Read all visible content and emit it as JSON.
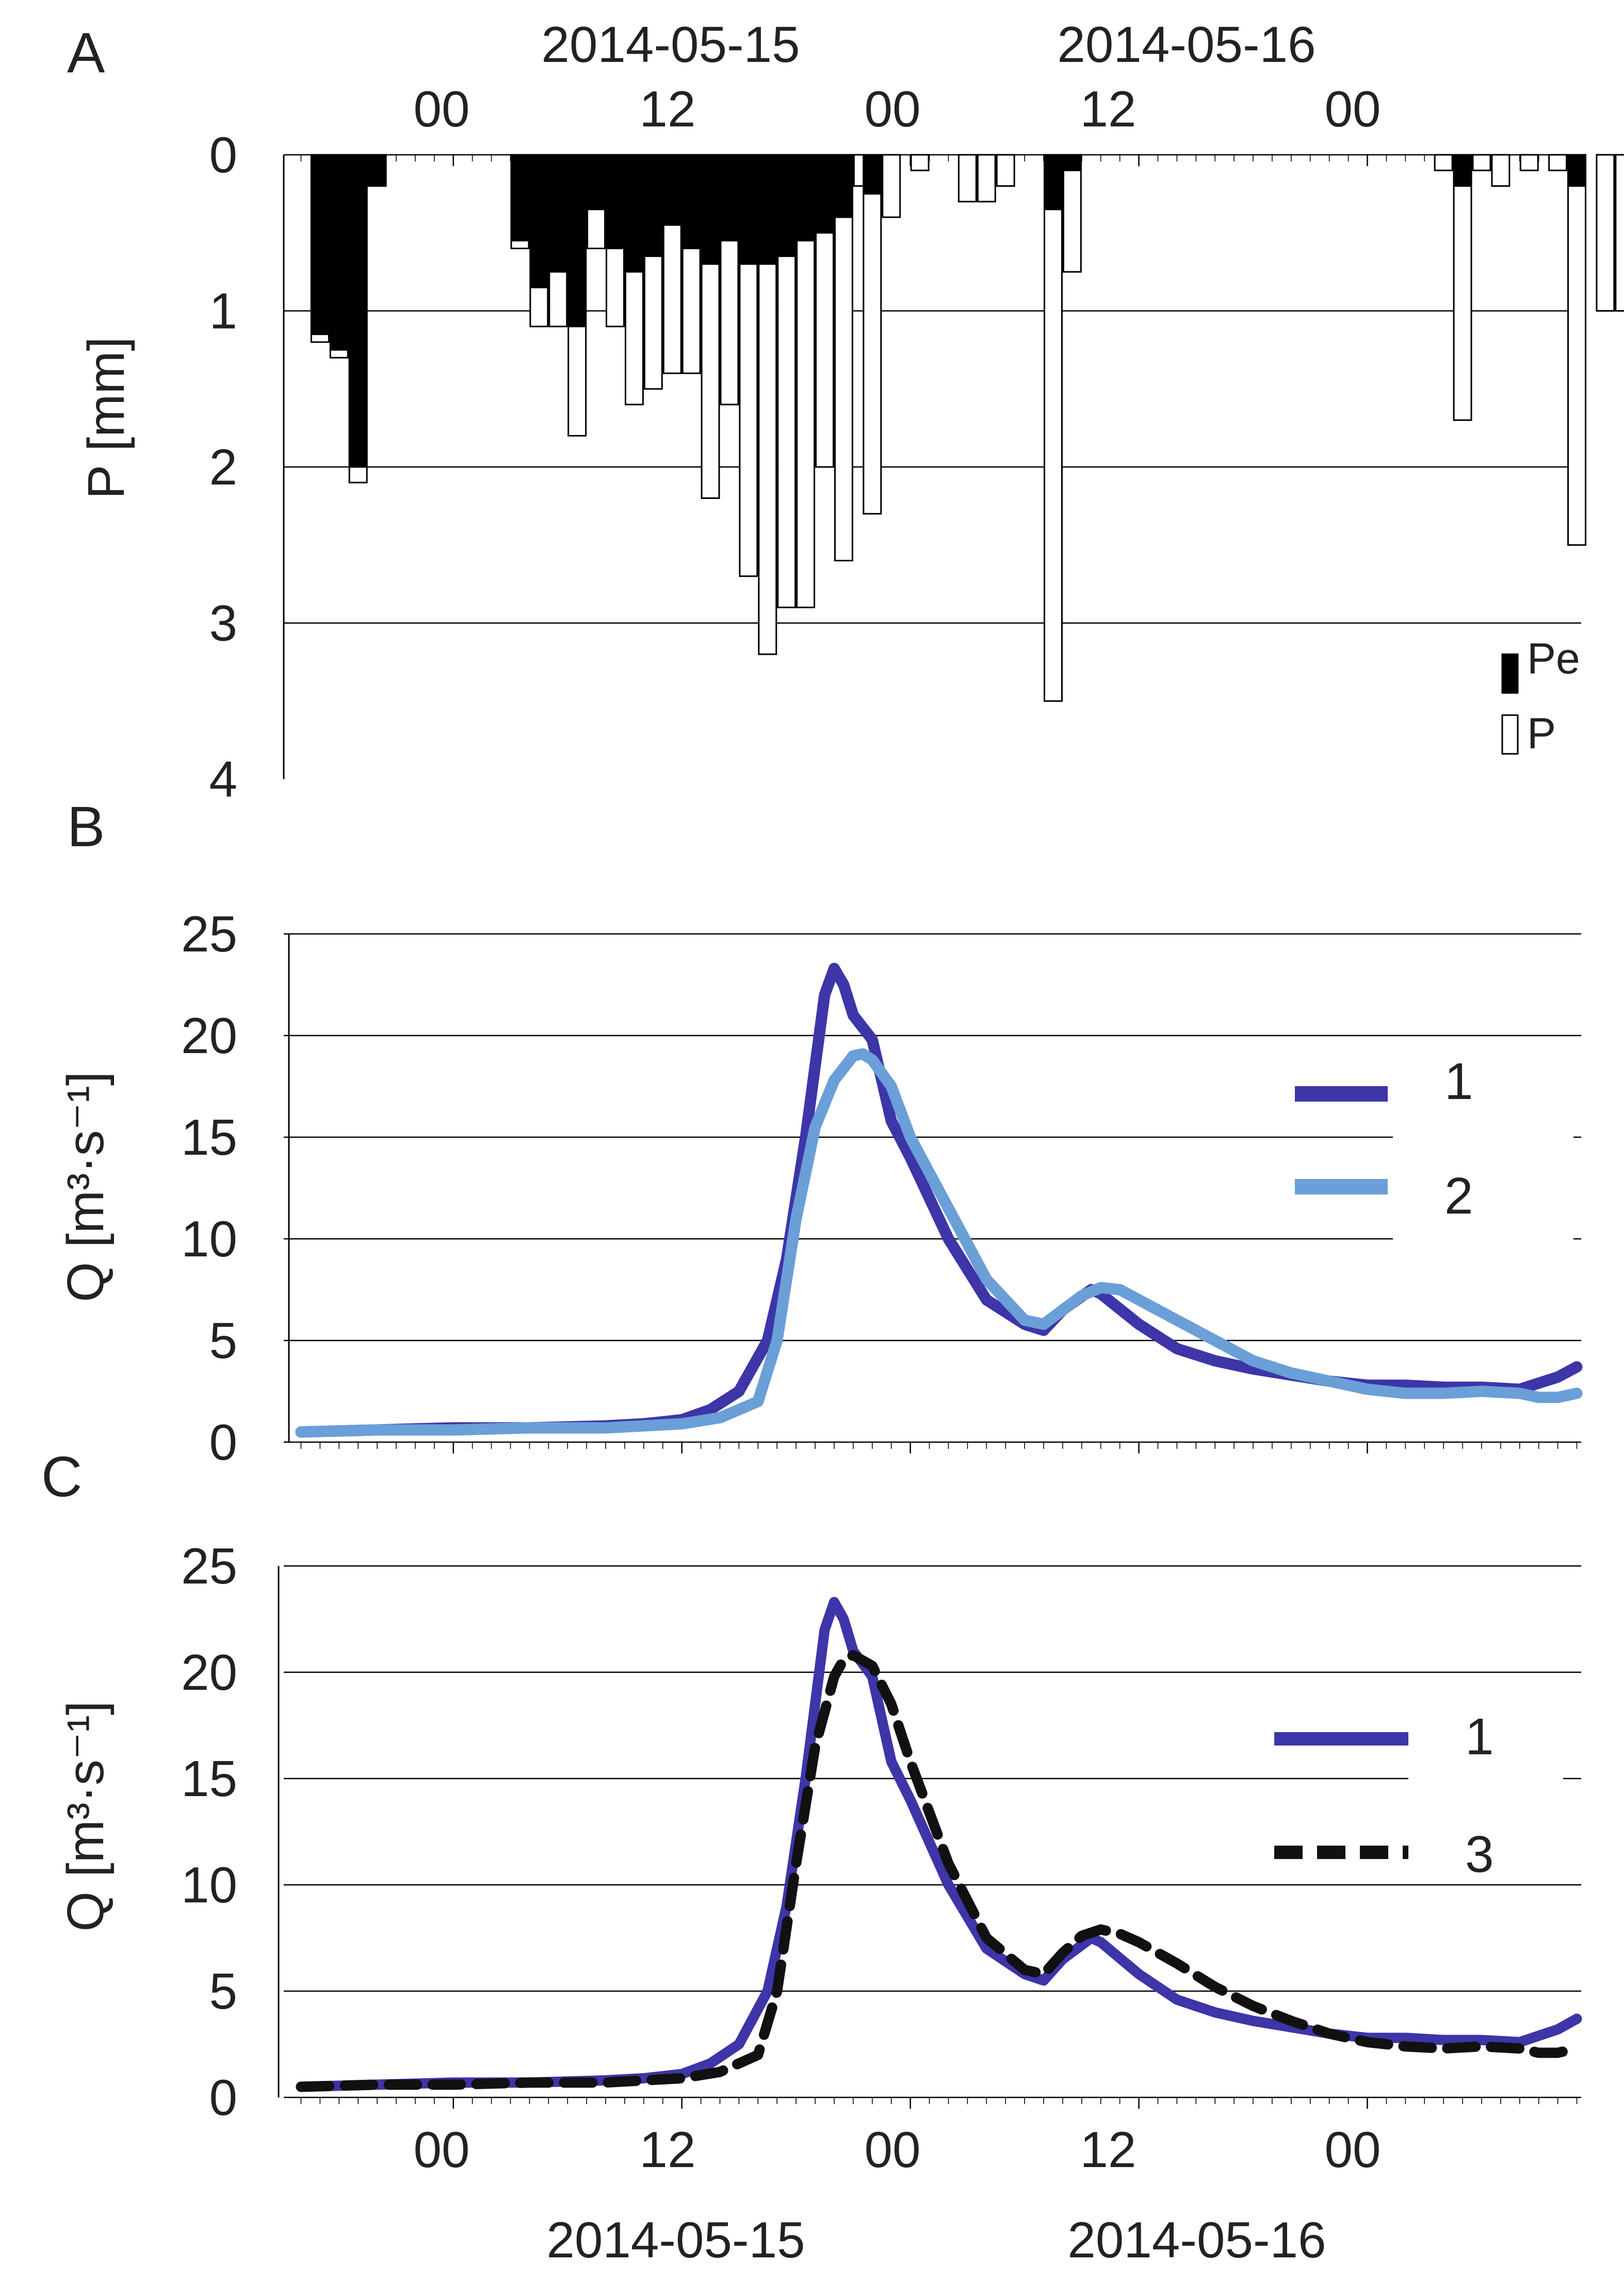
{
  "figure": {
    "panel_labels": [
      "A",
      "B",
      "C"
    ],
    "top_dates": [
      "2014-05-15",
      "2014-05-16"
    ],
    "bottom_dates": [
      "2014-05-15",
      "2014-05-16"
    ],
    "hour_labels": [
      "00",
      "12",
      "00",
      "12",
      "00"
    ],
    "colors": {
      "series_1": "#3d35a8",
      "series_2": "#6a9fd8",
      "series_3": "#111111",
      "pe_fill": "#000000",
      "p_fill": "#ffffff",
      "gridline": "#000000"
    }
  },
  "chart_data": [
    {
      "panel": "A",
      "type": "bar",
      "title": "",
      "xlabel": "",
      "ylabel": "P [mm]",
      "ylim": [
        0,
        4
      ],
      "y_inverted": true,
      "yticks": [
        "0",
        "1",
        "2",
        "3",
        "4"
      ],
      "x_unit": "hours from 2014-05-15 00:00",
      "x_range": [
        -8.5,
        59.5
      ],
      "legend": [
        "Pe",
        "P"
      ],
      "legend_position": "bottom-right",
      "bars": [
        {
          "hour": -7.0,
          "P": 1.2,
          "Pe": 1.15
        },
        {
          "hour": -6.0,
          "P": 1.3,
          "Pe": 1.25
        },
        {
          "hour": -5.0,
          "P": 2.1,
          "Pe": 2.0
        },
        {
          "hour": -4.0,
          "P": 0.2,
          "Pe": 0.2
        },
        {
          "hour": 3.5,
          "P": 0.6,
          "Pe": 0.55
        },
        {
          "hour": 4.5,
          "P": 1.1,
          "Pe": 0.85
        },
        {
          "hour": 5.5,
          "P": 1.1,
          "Pe": 0.75
        },
        {
          "hour": 6.5,
          "P": 1.8,
          "Pe": 1.1
        },
        {
          "hour": 7.5,
          "P": 0.6,
          "Pe": 0.35
        },
        {
          "hour": 8.5,
          "P": 1.1,
          "Pe": 0.6
        },
        {
          "hour": 9.5,
          "P": 1.6,
          "Pe": 0.75
        },
        {
          "hour": 10.5,
          "P": 1.5,
          "Pe": 0.65
        },
        {
          "hour": 11.5,
          "P": 1.4,
          "Pe": 0.45
        },
        {
          "hour": 12.5,
          "P": 1.4,
          "Pe": 0.6
        },
        {
          "hour": 13.5,
          "P": 2.2,
          "Pe": 0.7
        },
        {
          "hour": 14.5,
          "P": 1.6,
          "Pe": 0.55
        },
        {
          "hour": 15.5,
          "P": 2.7,
          "Pe": 0.7
        },
        {
          "hour": 16.5,
          "P": 3.2,
          "Pe": 0.7
        },
        {
          "hour": 17.5,
          "P": 2.9,
          "Pe": 0.65
        },
        {
          "hour": 18.5,
          "P": 2.9,
          "Pe": 0.55
        },
        {
          "hour": 19.5,
          "P": 2.0,
          "Pe": 0.5
        },
        {
          "hour": 20.5,
          "P": 2.6,
          "Pe": 0.4
        },
        {
          "hour": 21.5,
          "P": 0.2,
          "Pe": 0.0
        },
        {
          "hour": 22.0,
          "P": 2.3,
          "Pe": 0.25
        },
        {
          "hour": 23.0,
          "P": 0.4,
          "Pe": 0.0
        },
        {
          "hour": 24.5,
          "P": 0.1,
          "Pe": 0.0
        },
        {
          "hour": 27.0,
          "P": 0.3,
          "Pe": 0.0
        },
        {
          "hour": 28.0,
          "P": 0.3,
          "Pe": 0.0
        },
        {
          "hour": 29.0,
          "P": 0.2,
          "Pe": 0.0
        },
        {
          "hour": 31.5,
          "P": 3.5,
          "Pe": 0.35
        },
        {
          "hour": 32.5,
          "P": 0.75,
          "Pe": 0.1
        },
        {
          "hour": 52.0,
          "P": 0.1,
          "Pe": 0.0
        },
        {
          "hour": 53.0,
          "P": 1.7,
          "Pe": 0.2
        },
        {
          "hour": 54.0,
          "P": 0.1,
          "Pe": 0.0
        },
        {
          "hour": 55.0,
          "P": 0.2,
          "Pe": 0.0
        },
        {
          "hour": 56.5,
          "P": 0.1,
          "Pe": 0.0
        },
        {
          "hour": 58.0,
          "P": 0.1,
          "Pe": 0.0
        },
        {
          "hour": 59.0,
          "P": 2.5,
          "Pe": 0.2
        },
        {
          "hour": 60.5,
          "P": 1.0,
          "Pe": 0.0
        },
        {
          "hour": 61.5,
          "P": 1.0,
          "Pe": 0.0
        }
      ]
    },
    {
      "panel": "B",
      "type": "line",
      "title": "",
      "xlabel": "",
      "ylabel": "Q [m³·s⁻¹]",
      "ylim": [
        0,
        25
      ],
      "yticks": [
        "0",
        "5",
        "10",
        "15",
        "20",
        "25"
      ],
      "x_unit": "hours from 2014-05-15 00:00",
      "x_range": [
        -8.5,
        59.5
      ],
      "legend_position": "right",
      "series": [
        {
          "name": "1",
          "x": [
            -8,
            -4,
            0,
            4,
            8,
            10,
            12,
            13.5,
            15,
            16.5,
            17.5,
            18.5,
            19.5,
            20,
            20.5,
            21,
            22,
            23,
            24,
            26,
            28,
            30,
            31,
            32,
            33.5,
            34,
            36,
            38,
            40,
            42,
            44,
            46,
            48,
            50,
            52,
            54,
            56,
            57,
            58,
            59
          ],
          "values": [
            0.5,
            0.6,
            0.7,
            0.7,
            0.8,
            0.9,
            1.1,
            1.6,
            2.5,
            5.0,
            9.0,
            15.0,
            22.0,
            23.3,
            22.5,
            21.0,
            19.8,
            15.8,
            14.0,
            10.0,
            7.0,
            5.8,
            5.5,
            6.5,
            7.5,
            7.3,
            5.8,
            4.6,
            4.0,
            3.6,
            3.3,
            3.0,
            2.8,
            2.8,
            2.7,
            2.7,
            2.6,
            2.9,
            3.2,
            3.7
          ]
        },
        {
          "name": "2",
          "x": [
            -8,
            -4,
            0,
            4,
            8,
            10,
            12,
            14,
            16,
            17,
            18,
            19,
            20,
            21,
            21.5,
            22,
            23,
            24,
            26,
            28,
            30,
            31,
            32,
            33,
            34,
            35,
            36,
            38,
            40,
            42,
            44,
            46,
            48,
            50,
            52,
            54,
            56,
            57,
            58,
            59
          ],
          "values": [
            0.5,
            0.6,
            0.6,
            0.7,
            0.7,
            0.8,
            0.9,
            1.2,
            2.0,
            5.0,
            11.0,
            15.5,
            17.8,
            19.0,
            19.1,
            18.8,
            17.5,
            15.0,
            11.5,
            8.0,
            6.0,
            5.8,
            6.5,
            7.2,
            7.6,
            7.5,
            7.0,
            6.0,
            5.0,
            4.0,
            3.4,
            3.0,
            2.6,
            2.4,
            2.4,
            2.5,
            2.4,
            2.2,
            2.2,
            2.4
          ]
        }
      ]
    },
    {
      "panel": "C",
      "type": "line",
      "title": "",
      "xlabel": "",
      "ylabel": "Q [m³·s⁻¹]",
      "ylim": [
        0,
        25
      ],
      "yticks": [
        "0",
        "5",
        "10",
        "15",
        "20",
        "25"
      ],
      "x_unit": "hours from 2014-05-15 00:00",
      "x_range": [
        -8.5,
        59.5
      ],
      "xticks": [
        "00",
        "12",
        "00",
        "12",
        "00"
      ],
      "legend_position": "right",
      "series": [
        {
          "name": "1",
          "x": [
            -8,
            -4,
            0,
            4,
            8,
            10,
            12,
            13.5,
            15,
            16.5,
            17.5,
            18.5,
            19.5,
            20,
            20.5,
            21,
            22,
            23,
            24,
            26,
            28,
            30,
            31,
            32,
            33.5,
            34,
            36,
            38,
            40,
            42,
            44,
            46,
            48,
            50,
            52,
            54,
            56,
            57,
            58,
            59
          ],
          "values": [
            0.5,
            0.6,
            0.7,
            0.7,
            0.8,
            0.9,
            1.1,
            1.6,
            2.5,
            5.0,
            9.0,
            15.0,
            22.0,
            23.3,
            22.5,
            21.0,
            19.8,
            15.8,
            14.0,
            10.0,
            7.0,
            5.8,
            5.5,
            6.5,
            7.5,
            7.3,
            5.8,
            4.6,
            4.0,
            3.6,
            3.3,
            3.0,
            2.8,
            2.8,
            2.7,
            2.7,
            2.6,
            2.9,
            3.2,
            3.7
          ]
        },
        {
          "name": "3",
          "x": [
            -8,
            -4,
            0,
            4,
            8,
            10,
            12,
            14,
            16,
            17,
            18,
            19,
            20,
            20.5,
            21,
            22,
            23,
            24,
            26,
            28,
            30,
            31,
            32,
            33,
            34,
            35,
            36,
            38,
            40,
            42,
            44,
            46,
            48,
            50,
            52,
            54,
            56,
            57,
            58,
            59
          ],
          "values": [
            0.5,
            0.6,
            0.6,
            0.7,
            0.7,
            0.8,
            0.9,
            1.2,
            2.0,
            5.0,
            11.0,
            16.5,
            19.8,
            20.6,
            20.8,
            20.3,
            18.5,
            15.8,
            11.0,
            7.5,
            6.0,
            5.8,
            6.8,
            7.6,
            7.9,
            7.7,
            7.3,
            6.3,
            5.2,
            4.3,
            3.6,
            3.0,
            2.6,
            2.4,
            2.3,
            2.4,
            2.3,
            2.1,
            2.1,
            2.3
          ]
        }
      ]
    }
  ]
}
